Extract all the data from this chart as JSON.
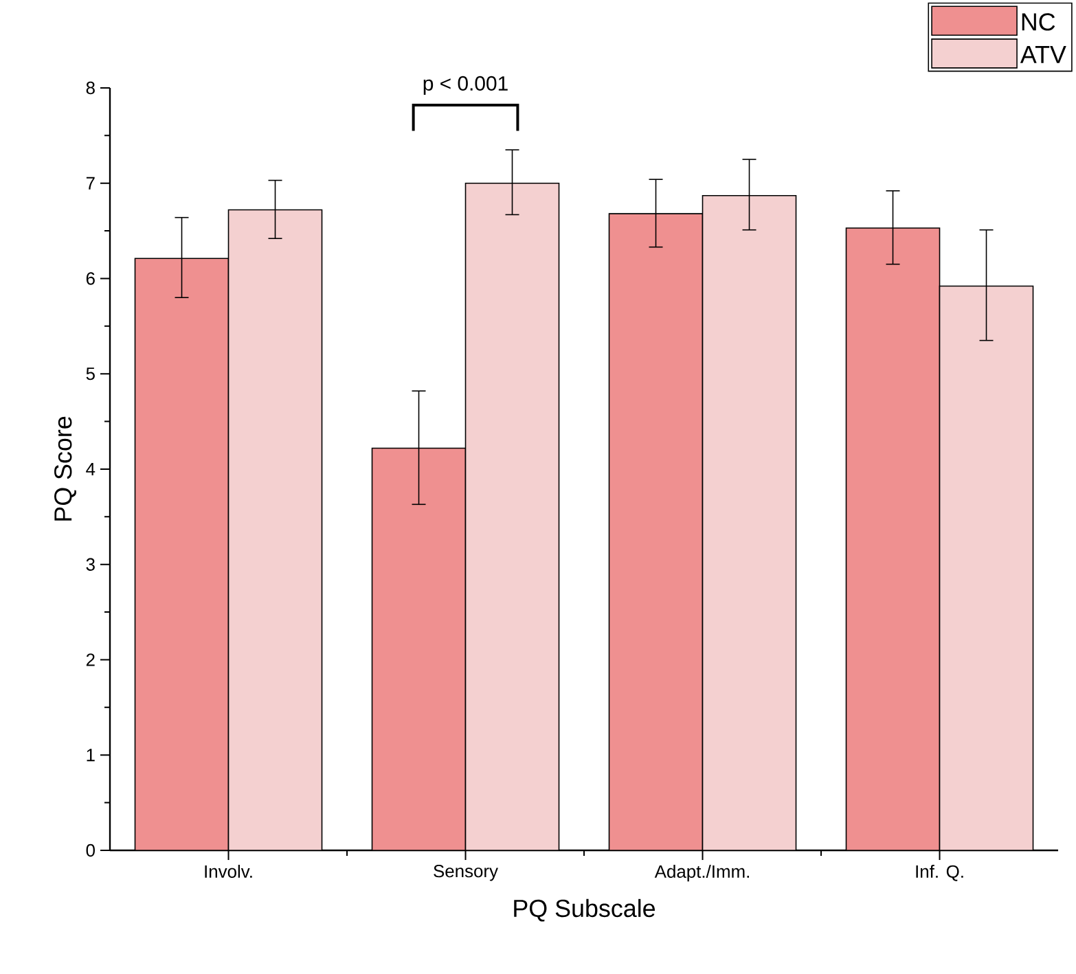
{
  "chart_data": {
    "type": "bar",
    "xlabel": "PQ Subscale",
    "ylabel": "PQ Score",
    "categories": [
      "Involv.",
      "Sensory",
      "Adapt./Imm.",
      "Inf. Q."
    ],
    "series": [
      {
        "name": "NC",
        "color": "#ef9090",
        "values": [
          6.21,
          4.22,
          6.68,
          6.53
        ],
        "errors": [
          [
            5.8,
            6.64
          ],
          [
            3.63,
            4.82
          ],
          [
            6.33,
            7.04
          ],
          [
            6.15,
            6.92
          ]
        ]
      },
      {
        "name": "ATV",
        "color": "#f4d0d0",
        "values": [
          6.72,
          7.0,
          6.87,
          5.92
        ],
        "errors": [
          [
            6.42,
            7.03
          ],
          [
            6.67,
            7.35
          ],
          [
            6.51,
            7.25
          ],
          [
            5.35,
            6.51
          ]
        ]
      }
    ],
    "ylim": [
      0,
      8
    ],
    "yticks": [
      0,
      1,
      2,
      3,
      4,
      5,
      6,
      7,
      8
    ],
    "legend": "top right",
    "grid": false,
    "annotations": [
      "p < 0.001"
    ]
  }
}
